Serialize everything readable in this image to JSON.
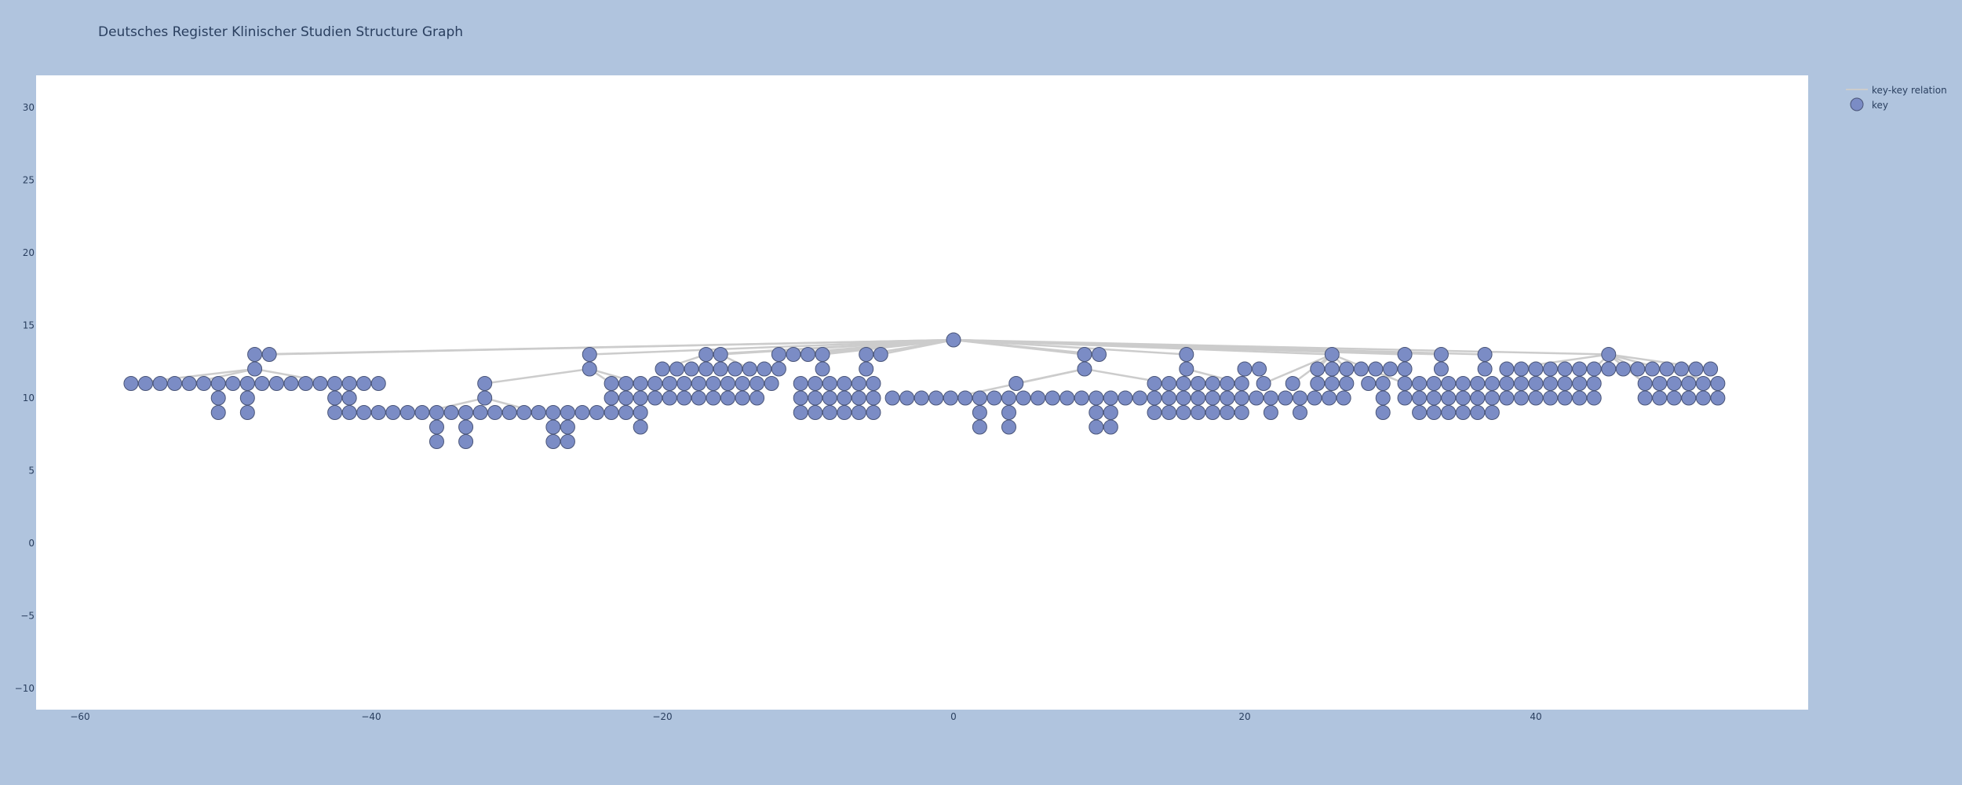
{
  "chart_data": {
    "type": "scatter",
    "title": "Deutsches Register Klinischer Studien Structure Graph",
    "xlabel": "",
    "ylabel": "",
    "xlim": [
      -60,
      58
    ],
    "ylim": [
      -11,
      32
    ],
    "xticks": [
      -60,
      -40,
      -20,
      0,
      20,
      40
    ],
    "yticks": [
      -10,
      -5,
      0,
      5,
      10,
      15,
      20,
      25,
      30
    ],
    "grid": false,
    "legend": {
      "placement": "top-right outside",
      "entries": [
        "key-key relation",
        "key"
      ]
    },
    "colors": {
      "paper": "#b0c4de",
      "plot": "#ffffff",
      "node": "#7b8cc5",
      "node_border": "#4a5578",
      "edge": "#cccccc",
      "text": "#2a3f5f"
    },
    "series": [
      {
        "name": "key-key relation",
        "kind": "edges"
      },
      {
        "name": "key",
        "kind": "nodes"
      }
    ],
    "nodes": [
      [
        0,
        14
      ],
      [
        -48,
        13
      ],
      [
        -47,
        13
      ],
      [
        -25,
        13
      ],
      [
        -17,
        13
      ],
      [
        -16,
        13
      ],
      [
        -12,
        13
      ],
      [
        -11,
        13
      ],
      [
        -10,
        13
      ],
      [
        -9,
        13
      ],
      [
        -6,
        13
      ],
      [
        -5,
        13
      ],
      [
        9,
        13
      ],
      [
        10,
        13
      ],
      [
        16,
        13
      ],
      [
        26,
        13
      ],
      [
        31,
        13
      ],
      [
        33.5,
        13
      ],
      [
        36.5,
        13
      ],
      [
        45,
        13
      ],
      [
        -48,
        12
      ],
      [
        -25,
        12
      ],
      [
        -20,
        12
      ],
      [
        -19,
        12
      ],
      [
        -18,
        12
      ],
      [
        -17,
        12
      ],
      [
        -16,
        12
      ],
      [
        -15,
        12
      ],
      [
        -14,
        12
      ],
      [
        -13,
        12
      ],
      [
        -12,
        12
      ],
      [
        -9,
        12
      ],
      [
        -6,
        12
      ],
      [
        9,
        12
      ],
      [
        16,
        12
      ],
      [
        20,
        12
      ],
      [
        21,
        12
      ],
      [
        25,
        12
      ],
      [
        26,
        12
      ],
      [
        27,
        12
      ],
      [
        28,
        12
      ],
      [
        29,
        12
      ],
      [
        30,
        12
      ],
      [
        31,
        12
      ],
      [
        33.5,
        12
      ],
      [
        36.5,
        12
      ],
      [
        38,
        12
      ],
      [
        39,
        12
      ],
      [
        40,
        12
      ],
      [
        41,
        12
      ],
      [
        42,
        12
      ],
      [
        43,
        12
      ],
      [
        44,
        12
      ],
      [
        45,
        12
      ],
      [
        46,
        12
      ],
      [
        47,
        12
      ],
      [
        48,
        12
      ],
      [
        49,
        12
      ],
      [
        50,
        12
      ],
      [
        51,
        12
      ],
      [
        52,
        12
      ],
      [
        -56.5,
        11
      ],
      [
        -55.5,
        11
      ],
      [
        -54.5,
        11
      ],
      [
        -53.5,
        11
      ],
      [
        -52.5,
        11
      ],
      [
        -51.5,
        11
      ],
      [
        -50.5,
        11
      ],
      [
        -49.5,
        11
      ],
      [
        -48.5,
        11
      ],
      [
        -47.5,
        11
      ],
      [
        -46.5,
        11
      ],
      [
        -45.5,
        11
      ],
      [
        -44.5,
        11
      ],
      [
        -43.5,
        11
      ],
      [
        -42.5,
        11
      ],
      [
        -41.5,
        11
      ],
      [
        -40.5,
        11
      ],
      [
        -39.5,
        11
      ],
      [
        -32.2,
        11
      ],
      [
        -23.5,
        11
      ],
      [
        -22.5,
        11
      ],
      [
        -21.5,
        11
      ],
      [
        -20.5,
        11
      ],
      [
        -19.5,
        11
      ],
      [
        -18.5,
        11
      ],
      [
        -17.5,
        11
      ],
      [
        -16.5,
        11
      ],
      [
        -15.5,
        11
      ],
      [
        -14.5,
        11
      ],
      [
        -13.5,
        11
      ],
      [
        -12.5,
        11
      ],
      [
        -10.5,
        11
      ],
      [
        -9.5,
        11
      ],
      [
        -8.5,
        11
      ],
      [
        -7.5,
        11
      ],
      [
        -6.5,
        11
      ],
      [
        -5.5,
        11
      ],
      [
        4.3,
        11
      ],
      [
        13.8,
        11
      ],
      [
        14.8,
        11
      ],
      [
        15.8,
        11
      ],
      [
        16.8,
        11
      ],
      [
        17.8,
        11
      ],
      [
        18.8,
        11
      ],
      [
        19.8,
        11
      ],
      [
        21.3,
        11
      ],
      [
        23.3,
        11
      ],
      [
        25,
        11
      ],
      [
        26,
        11
      ],
      [
        27,
        11
      ],
      [
        28.5,
        11
      ],
      [
        29.5,
        11
      ],
      [
        31,
        11
      ],
      [
        32,
        11
      ],
      [
        33,
        11
      ],
      [
        34,
        11
      ],
      [
        35,
        11
      ],
      [
        36,
        11
      ],
      [
        37,
        11
      ],
      [
        38,
        11
      ],
      [
        39,
        11
      ],
      [
        40,
        11
      ],
      [
        41,
        11
      ],
      [
        42,
        11
      ],
      [
        43,
        11
      ],
      [
        44,
        11
      ],
      [
        47.5,
        11
      ],
      [
        48.5,
        11
      ],
      [
        49.5,
        11
      ],
      [
        50.5,
        11
      ],
      [
        51.5,
        11
      ],
      [
        52.5,
        11
      ],
      [
        -50.5,
        10
      ],
      [
        -48.5,
        10
      ],
      [
        -42.5,
        10
      ],
      [
        -41.5,
        10
      ],
      [
        -32.2,
        10
      ],
      [
        -23.5,
        10
      ],
      [
        -22.5,
        10
      ],
      [
        -21.5,
        10
      ],
      [
        -20.5,
        10
      ],
      [
        -19.5,
        10
      ],
      [
        -18.5,
        10
      ],
      [
        -17.5,
        10
      ],
      [
        -16.5,
        10
      ],
      [
        -15.5,
        10
      ],
      [
        -14.5,
        10
      ],
      [
        -13.5,
        10
      ],
      [
        -10.5,
        10
      ],
      [
        -9.5,
        10
      ],
      [
        -8.5,
        10
      ],
      [
        -7.5,
        10
      ],
      [
        -6.5,
        10
      ],
      [
        -5.5,
        10
      ],
      [
        -4.2,
        10
      ],
      [
        -3.2,
        10
      ],
      [
        -2.2,
        10
      ],
      [
        -1.2,
        10
      ],
      [
        -0.2,
        10
      ],
      [
        0.8,
        10
      ],
      [
        1.8,
        10
      ],
      [
        2.8,
        10
      ],
      [
        3.8,
        10
      ],
      [
        4.8,
        10
      ],
      [
        5.8,
        10
      ],
      [
        6.8,
        10
      ],
      [
        7.8,
        10
      ],
      [
        8.8,
        10
      ],
      [
        9.8,
        10
      ],
      [
        10.8,
        10
      ],
      [
        11.8,
        10
      ],
      [
        12.8,
        10
      ],
      [
        13.8,
        10
      ],
      [
        14.8,
        10
      ],
      [
        15.8,
        10
      ],
      [
        16.8,
        10
      ],
      [
        17.8,
        10
      ],
      [
        18.8,
        10
      ],
      [
        19.8,
        10
      ],
      [
        20.8,
        10
      ],
      [
        21.8,
        10
      ],
      [
        22.8,
        10
      ],
      [
        23.8,
        10
      ],
      [
        24.8,
        10
      ],
      [
        25.8,
        10
      ],
      [
        26.8,
        10
      ],
      [
        29.5,
        10
      ],
      [
        31,
        10
      ],
      [
        32,
        10
      ],
      [
        33,
        10
      ],
      [
        34,
        10
      ],
      [
        35,
        10
      ],
      [
        36,
        10
      ],
      [
        37,
        10
      ],
      [
        38,
        10
      ],
      [
        39,
        10
      ],
      [
        40,
        10
      ],
      [
        41,
        10
      ],
      [
        42,
        10
      ],
      [
        43,
        10
      ],
      [
        44,
        10
      ],
      [
        47.5,
        10
      ],
      [
        48.5,
        10
      ],
      [
        49.5,
        10
      ],
      [
        50.5,
        10
      ],
      [
        51.5,
        10
      ],
      [
        52.5,
        10
      ],
      [
        -50.5,
        9
      ],
      [
        -48.5,
        9
      ],
      [
        -42.5,
        9
      ],
      [
        -41.5,
        9
      ],
      [
        -40.5,
        9
      ],
      [
        -39.5,
        9
      ],
      [
        -38.5,
        9
      ],
      [
        -37.5,
        9
      ],
      [
        -36.5,
        9
      ],
      [
        -35.5,
        9
      ],
      [
        -34.5,
        9
      ],
      [
        -33.5,
        9
      ],
      [
        -32.5,
        9
      ],
      [
        -31.5,
        9
      ],
      [
        -30.5,
        9
      ],
      [
        -29.5,
        9
      ],
      [
        -28.5,
        9
      ],
      [
        -27.5,
        9
      ],
      [
        -26.5,
        9
      ],
      [
        -25.5,
        9
      ],
      [
        -24.5,
        9
      ],
      [
        -23.5,
        9
      ],
      [
        -22.5,
        9
      ],
      [
        -21.5,
        9
      ],
      [
        -10.5,
        9
      ],
      [
        -9.5,
        9
      ],
      [
        -8.5,
        9
      ],
      [
        -7.5,
        9
      ],
      [
        -6.5,
        9
      ],
      [
        -5.5,
        9
      ],
      [
        1.8,
        9
      ],
      [
        3.8,
        9
      ],
      [
        9.8,
        9
      ],
      [
        10.8,
        9
      ],
      [
        13.8,
        9
      ],
      [
        14.8,
        9
      ],
      [
        15.8,
        9
      ],
      [
        16.8,
        9
      ],
      [
        17.8,
        9
      ],
      [
        18.8,
        9
      ],
      [
        19.8,
        9
      ],
      [
        21.8,
        9
      ],
      [
        23.8,
        9
      ],
      [
        29.5,
        9
      ],
      [
        32,
        9
      ],
      [
        33,
        9
      ],
      [
        34,
        9
      ],
      [
        35,
        9
      ],
      [
        36,
        9
      ],
      [
        37,
        9
      ],
      [
        -35.5,
        8
      ],
      [
        -33.5,
        8
      ],
      [
        -27.5,
        8
      ],
      [
        -26.5,
        8
      ],
      [
        -21.5,
        8
      ],
      [
        1.8,
        8
      ],
      [
        3.8,
        8
      ],
      [
        9.8,
        8
      ],
      [
        10.8,
        8
      ],
      [
        -35.5,
        7
      ],
      [
        -33.5,
        7
      ],
      [
        -27.5,
        7
      ],
      [
        -26.5,
        7
      ]
    ],
    "edges": [
      [
        [
          0,
          14
        ],
        [
          -48,
          13
        ]
      ],
      [
        [
          0,
          14
        ],
        [
          -47,
          13
        ]
      ],
      [
        [
          0,
          14
        ],
        [
          -25,
          13
        ]
      ],
      [
        [
          0,
          14
        ],
        [
          -17,
          13
        ]
      ],
      [
        [
          0,
          14
        ],
        [
          -16,
          13
        ]
      ],
      [
        [
          0,
          14
        ],
        [
          -12,
          13
        ]
      ],
      [
        [
          0,
          14
        ],
        [
          -11,
          13
        ]
      ],
      [
        [
          0,
          14
        ],
        [
          -10,
          13
        ]
      ],
      [
        [
          0,
          14
        ],
        [
          -9,
          13
        ]
      ],
      [
        [
          0,
          14
        ],
        [
          -6,
          13
        ]
      ],
      [
        [
          0,
          14
        ],
        [
          -5,
          13
        ]
      ],
      [
        [
          0,
          14
        ],
        [
          9,
          13
        ]
      ],
      [
        [
          0,
          14
        ],
        [
          10,
          13
        ]
      ],
      [
        [
          0,
          14
        ],
        [
          16,
          13
        ]
      ],
      [
        [
          0,
          14
        ],
        [
          26,
          13
        ]
      ],
      [
        [
          0,
          14
        ],
        [
          31,
          13
        ]
      ],
      [
        [
          0,
          14
        ],
        [
          33.5,
          13
        ]
      ],
      [
        [
          0,
          14
        ],
        [
          36.5,
          13
        ]
      ],
      [
        [
          0,
          14
        ],
        [
          45,
          13
        ]
      ],
      [
        [
          -48,
          13
        ],
        [
          -48,
          12
        ]
      ],
      [
        [
          -48,
          12
        ],
        [
          -56.5,
          11
        ]
      ],
      [
        [
          -48,
          12
        ],
        [
          -52.5,
          11
        ]
      ],
      [
        [
          -48,
          12
        ],
        [
          -42.5,
          11
        ]
      ],
      [
        [
          -25,
          13
        ],
        [
          -25,
          12
        ]
      ],
      [
        [
          -25,
          12
        ],
        [
          -32.2,
          11
        ]
      ],
      [
        [
          -25,
          12
        ],
        [
          -23.5,
          11
        ]
      ],
      [
        [
          -25,
          12
        ],
        [
          -21.5,
          11
        ]
      ],
      [
        [
          -32.2,
          10
        ],
        [
          -36.5,
          9
        ]
      ],
      [
        [
          -32.2,
          10
        ],
        [
          -28.5,
          9
        ]
      ],
      [
        [
          -17,
          13
        ],
        [
          -20,
          12
        ]
      ],
      [
        [
          -16,
          13
        ],
        [
          -14,
          12
        ]
      ],
      [
        [
          -9,
          13
        ],
        [
          -9,
          12
        ]
      ],
      [
        [
          -6,
          13
        ],
        [
          -6,
          12
        ]
      ],
      [
        [
          9,
          13
        ],
        [
          9,
          12
        ]
      ],
      [
        [
          9,
          12
        ],
        [
          -0.2,
          10
        ]
      ],
      [
        [
          9,
          12
        ],
        [
          14.8,
          11
        ]
      ],
      [
        [
          9,
          12
        ],
        [
          4.3,
          11
        ]
      ],
      [
        [
          16,
          13
        ],
        [
          16,
          12
        ]
      ],
      [
        [
          16,
          12
        ],
        [
          19.8,
          11
        ]
      ],
      [
        [
          26,
          13
        ],
        [
          25,
          12
        ]
      ],
      [
        [
          26,
          13
        ],
        [
          27,
          12
        ]
      ],
      [
        [
          26,
          13
        ],
        [
          21.3,
          11
        ]
      ],
      [
        [
          26,
          13
        ],
        [
          23.3,
          11
        ]
      ],
      [
        [
          26,
          13
        ],
        [
          31,
          11
        ]
      ],
      [
        [
          31,
          13
        ],
        [
          31,
          12
        ]
      ],
      [
        [
          33.5,
          13
        ],
        [
          33.5,
          12
        ]
      ],
      [
        [
          36.5,
          13
        ],
        [
          36.5,
          12
        ]
      ],
      [
        [
          45,
          13
        ],
        [
          38,
          12
        ]
      ],
      [
        [
          45,
          13
        ],
        [
          44,
          12
        ]
      ],
      [
        [
          45,
          13
        ],
        [
          47,
          12
        ]
      ],
      [
        [
          45,
          13
        ],
        [
          52,
          12
        ]
      ],
      [
        [
          45,
          13
        ],
        [
          47.5,
          11
        ]
      ],
      [
        [
          45,
          13
        ],
        [
          52.5,
          11
        ]
      ]
    ]
  }
}
